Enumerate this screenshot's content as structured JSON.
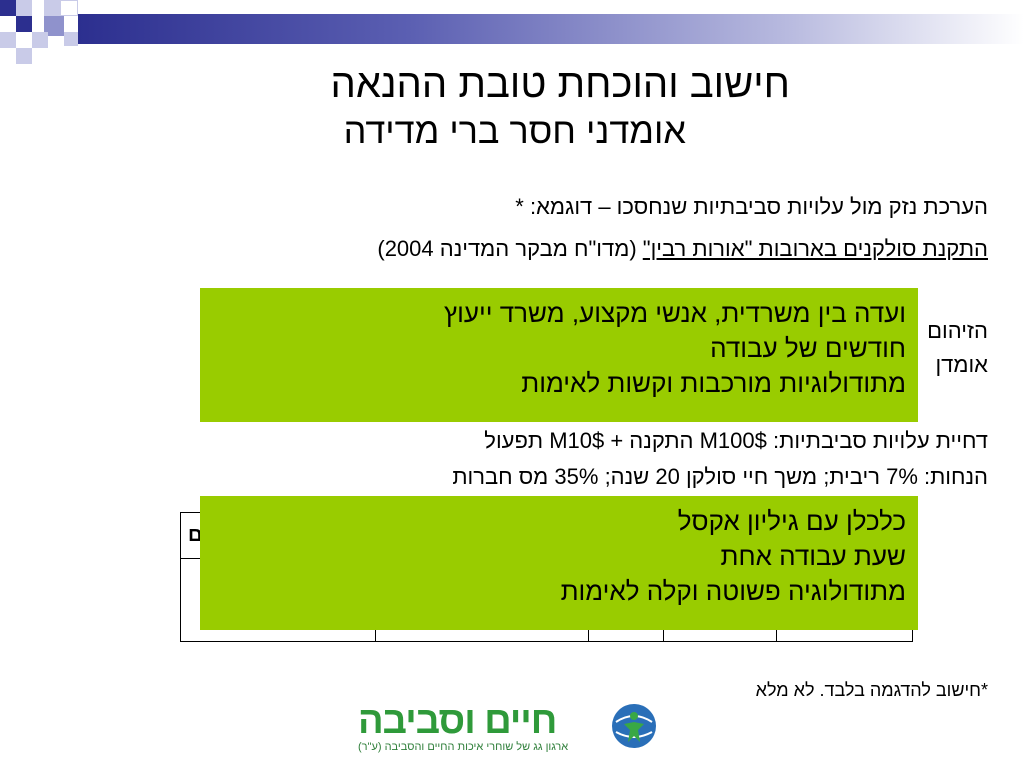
{
  "title": "חישוב והוכחת טובת ההנאה",
  "subtitle": "אומדני חסר ברי מדידה",
  "body": {
    "line1": "הערכת נזק מול עלויות סביבתיות שנחסכו – דוגמא: *",
    "line2_underlined": "התקנת סולקנים בארובות \"אורות רבין\"",
    "line2_rest": " (מדו\"ח מבקר המדינה 2004)",
    "partial_line_a": "הזיהום",
    "partial_line_b": "אומדן",
    "line_costs": "דחיית עלויות סביבתיות: $M100 התקנה + $M10 תפעול",
    "line_assumptions": "הנחות: 7% ריבית; משך חיי סולקן 20 שנה; 35% מס חברות",
    "table_partial_header": "ם"
  },
  "green_box_1": {
    "lines": [
      "ועדה בין משרדית, אנשי מקצוע, משרד ייעוץ",
      "חודשים של עבודה",
      "מתודולוגיות מורכבות וקשות לאימות"
    ]
  },
  "green_box_2": {
    "lines": [
      "כלכלן עם גיליון אקסל",
      "שעת עבודה אחת",
      "מתודולוגיה פשוטה וקלה לאימות"
    ]
  },
  "footnote": "*חישוב להדגמה בלבד. לא מלא",
  "logo": {
    "name": "חיים וסביבה",
    "tagline": "ארגון גג של שוחרי איכות החיים והסביבה (ע\"ר)",
    "icon": "globe-people-icon"
  },
  "colors": {
    "green_box": "#99cc00",
    "topbar_dark": "#2c2f8f",
    "logo_green": "#2f9a3a"
  }
}
